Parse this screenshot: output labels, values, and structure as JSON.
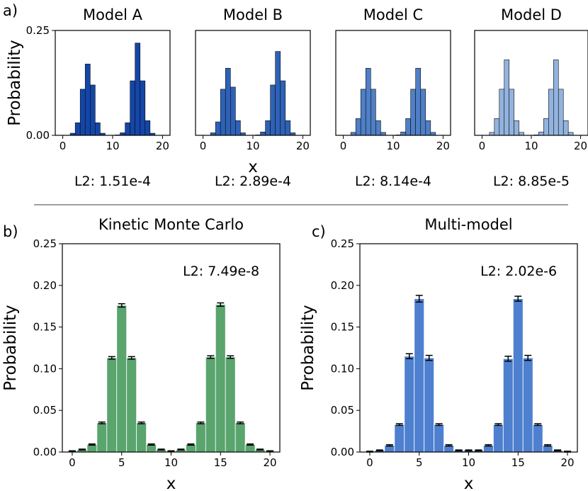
{
  "panel_labels": {
    "a": "a)",
    "b": "b)",
    "c": "c)"
  },
  "colors": {
    "model_a": "#1446a8",
    "model_b": "#2e62b8",
    "model_c": "#4f7fc6",
    "model_d": "#93b3df",
    "kmc": "#5aa46e",
    "multi": "#4e80cf",
    "divider": "#a0a0a0"
  },
  "chart_data": [
    {
      "id": "model_a",
      "type": "bar",
      "title": "Model A",
      "ylabel": "Probability",
      "xlabel": "",
      "annotation": "L2: 1.51e-4",
      "xlim": [
        -1.5,
        21.5
      ],
      "ylim": [
        0,
        0.25
      ],
      "xticks": [
        0,
        10,
        20
      ],
      "yticks": [
        0.0,
        0.25
      ],
      "ytick_labels": [
        "0.00",
        "0.25"
      ],
      "x": [
        1,
        2,
        3,
        4,
        5,
        6,
        7,
        8,
        9,
        10,
        11,
        12,
        13,
        14,
        15,
        16,
        17,
        18,
        19,
        20
      ],
      "values": [
        0.0,
        0.005,
        0.03,
        0.11,
        0.17,
        0.12,
        0.03,
        0.005,
        0.0,
        0.0,
        0.001,
        0.006,
        0.03,
        0.13,
        0.22,
        0.13,
        0.035,
        0.005,
        0.0,
        0.0
      ],
      "error": []
    },
    {
      "id": "model_b",
      "type": "bar",
      "title": "Model B",
      "ylabel": "",
      "xlabel": "x",
      "annotation": "L2: 2.89e-4",
      "xlim": [
        -1.5,
        21.5
      ],
      "ylim": [
        0,
        0.25
      ],
      "xticks": [
        0,
        10,
        20
      ],
      "yticks": [],
      "ytick_labels": [],
      "x": [
        1,
        2,
        3,
        4,
        5,
        6,
        7,
        8,
        9,
        10,
        11,
        12,
        13,
        14,
        15,
        16,
        17,
        18,
        19,
        20
      ],
      "values": [
        0.0,
        0.006,
        0.032,
        0.11,
        0.16,
        0.115,
        0.035,
        0.006,
        0.0,
        0.0,
        0.001,
        0.008,
        0.035,
        0.12,
        0.2,
        0.13,
        0.035,
        0.006,
        0.0,
        0.0
      ],
      "error": []
    },
    {
      "id": "model_c",
      "type": "bar",
      "title": "Model C",
      "ylabel": "",
      "xlabel": "",
      "annotation": "L2: 8.14e-4",
      "xlim": [
        -1.5,
        21.5
      ],
      "ylim": [
        0,
        0.25
      ],
      "xticks": [
        0,
        10,
        20
      ],
      "yticks": [],
      "ytick_labels": [],
      "x": [
        1,
        2,
        3,
        4,
        5,
        6,
        7,
        8,
        9,
        10,
        11,
        12,
        13,
        14,
        15,
        16,
        17,
        18,
        19,
        20
      ],
      "values": [
        0.0,
        0.007,
        0.04,
        0.11,
        0.16,
        0.11,
        0.035,
        0.007,
        0.0,
        0.0,
        0.001,
        0.008,
        0.04,
        0.11,
        0.16,
        0.11,
        0.035,
        0.007,
        0.0,
        0.0
      ],
      "error": []
    },
    {
      "id": "model_d",
      "type": "bar",
      "title": "Model D",
      "ylabel": "",
      "xlabel": "",
      "annotation": "L2: 8.85e-5",
      "xlim": [
        -1.5,
        21.5
      ],
      "ylim": [
        0,
        0.25
      ],
      "xticks": [
        0,
        10,
        20
      ],
      "yticks": [],
      "ytick_labels": [],
      "x": [
        1,
        2,
        3,
        4,
        5,
        6,
        7,
        8,
        9,
        10,
        11,
        12,
        13,
        14,
        15,
        16,
        17,
        18,
        19,
        20
      ],
      "values": [
        0.0,
        0.007,
        0.04,
        0.11,
        0.18,
        0.11,
        0.035,
        0.007,
        0.0,
        0.0,
        0.001,
        0.008,
        0.04,
        0.11,
        0.18,
        0.11,
        0.035,
        0.007,
        0.0,
        0.0
      ],
      "error": []
    },
    {
      "id": "kmc",
      "type": "bar",
      "title": "Kinetic Monte Carlo",
      "ylabel": "Probability",
      "xlabel": "x",
      "annotation": "L2: 7.49e-8",
      "xlim": [
        -1,
        21
      ],
      "ylim": [
        0,
        0.25
      ],
      "xticks": [
        0,
        5,
        10,
        15,
        20
      ],
      "yticks": [
        0.0,
        0.05,
        0.1,
        0.15,
        0.2,
        0.25
      ],
      "ytick_labels": [
        "0.00",
        "0.05",
        "0.10",
        "0.15",
        "0.20",
        "0.25"
      ],
      "x": [
        0,
        1,
        2,
        3,
        4,
        5,
        6,
        7,
        8,
        9,
        10,
        11,
        12,
        13,
        14,
        15,
        16,
        17,
        18,
        19,
        20
      ],
      "values": [
        0.001,
        0.003,
        0.009,
        0.035,
        0.113,
        0.176,
        0.113,
        0.035,
        0.009,
        0.003,
        0.001,
        0.003,
        0.009,
        0.035,
        0.114,
        0.177,
        0.114,
        0.035,
        0.009,
        0.003,
        0.001
      ],
      "error": [
        0.0005,
        0.0005,
        0.0007,
        0.001,
        0.0015,
        0.002,
        0.0015,
        0.001,
        0.0007,
        0.0005,
        0.0005,
        0.0005,
        0.0007,
        0.001,
        0.0015,
        0.002,
        0.0015,
        0.001,
        0.0007,
        0.0005,
        0.0005
      ]
    },
    {
      "id": "multi",
      "type": "bar",
      "title": "Multi-model",
      "ylabel": "Probability",
      "xlabel": "x",
      "annotation": "L2: 2.02e-6",
      "xlim": [
        -1,
        21
      ],
      "ylim": [
        0,
        0.25
      ],
      "xticks": [
        0,
        5,
        10,
        15,
        20
      ],
      "yticks": [
        0.0,
        0.05,
        0.1,
        0.15,
        0.2,
        0.25
      ],
      "ytick_labels": [
        "0.00",
        "0.05",
        "0.10",
        "0.15",
        "0.20",
        "0.25"
      ],
      "x": [
        0,
        1,
        2,
        3,
        4,
        5,
        6,
        7,
        8,
        9,
        10,
        11,
        12,
        13,
        14,
        15,
        16,
        17,
        18,
        19,
        20
      ],
      "values": [
        0.0005,
        0.002,
        0.008,
        0.033,
        0.115,
        0.184,
        0.113,
        0.033,
        0.008,
        0.002,
        0.002,
        0.002,
        0.008,
        0.033,
        0.112,
        0.184,
        0.113,
        0.033,
        0.008,
        0.002,
        0.0005
      ],
      "error": [
        0.0005,
        0.0005,
        0.0008,
        0.001,
        0.003,
        0.004,
        0.003,
        0.001,
        0.0008,
        0.0005,
        0.0005,
        0.0005,
        0.0008,
        0.001,
        0.003,
        0.003,
        0.003,
        0.001,
        0.0008,
        0.0005,
        0.0005
      ]
    }
  ]
}
